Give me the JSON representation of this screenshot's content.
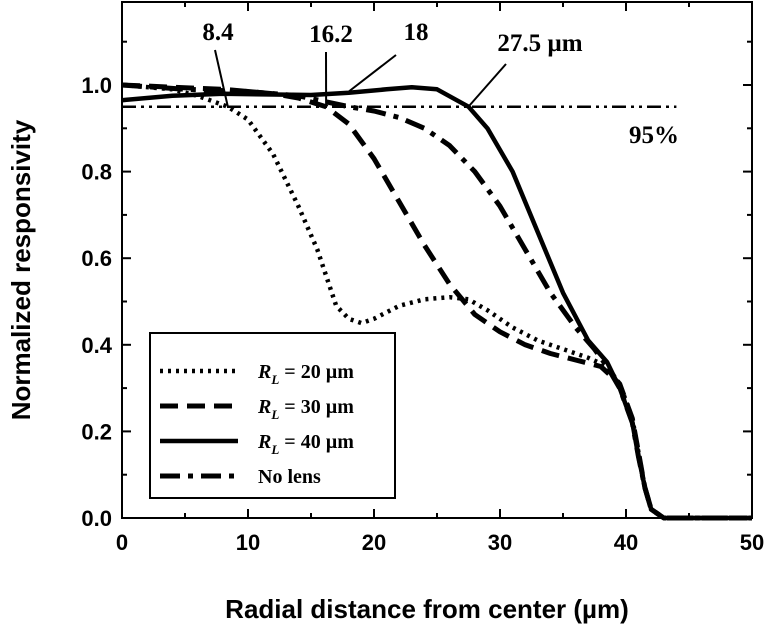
{
  "chart_data": {
    "type": "line",
    "xlabel": "Radial distance from center (µm)",
    "ylabel": "Normalized responsivity",
    "xlim": [
      0,
      50
    ],
    "ylim": [
      0,
      1.0
    ],
    "grid": false,
    "legend_position": "bottom-left",
    "x_ticks": [
      "0",
      "10",
      "20",
      "30",
      "40",
      "50"
    ],
    "y_ticks": [
      "0.0",
      "0.2",
      "0.4",
      "0.6",
      "0.8",
      "1.0"
    ],
    "series": [
      {
        "name_prefix": "R",
        "name_subscript": "L",
        "name_suffix": " = 20 µm",
        "style": "dotted",
        "points": [
          [
            0,
            1.0
          ],
          [
            4,
            0.99
          ],
          [
            6,
            0.975
          ],
          [
            8.4,
            0.95
          ],
          [
            10,
            0.92
          ],
          [
            12,
            0.84
          ],
          [
            14,
            0.72
          ],
          [
            15.5,
            0.62
          ],
          [
            17,
            0.49
          ],
          [
            18,
            0.46
          ],
          [
            19,
            0.45
          ],
          [
            20,
            0.46
          ],
          [
            22,
            0.49
          ],
          [
            24,
            0.505
          ],
          [
            26,
            0.51
          ],
          [
            27.5,
            0.505
          ],
          [
            29,
            0.48
          ],
          [
            31,
            0.44
          ],
          [
            33,
            0.41
          ],
          [
            35,
            0.39
          ],
          [
            37,
            0.37
          ],
          [
            38.5,
            0.35
          ],
          [
            39.5,
            0.31
          ],
          [
            40.5,
            0.23
          ],
          [
            41,
            0.15
          ],
          [
            41.5,
            0.07
          ],
          [
            42,
            0.02
          ],
          [
            43,
            0.0
          ],
          [
            50,
            0.0
          ]
        ]
      },
      {
        "name_prefix": "R",
        "name_subscript": "L",
        "name_suffix": " = 30 µm",
        "style": "dashed",
        "points": [
          [
            0,
            1.0
          ],
          [
            4,
            0.995
          ],
          [
            8,
            0.99
          ],
          [
            12,
            0.98
          ],
          [
            14,
            0.97
          ],
          [
            16.2,
            0.95
          ],
          [
            18,
            0.91
          ],
          [
            20,
            0.83
          ],
          [
            22,
            0.73
          ],
          [
            24,
            0.63
          ],
          [
            26,
            0.54
          ],
          [
            28,
            0.47
          ],
          [
            30,
            0.43
          ],
          [
            32,
            0.4
          ],
          [
            34,
            0.38
          ],
          [
            36,
            0.365
          ],
          [
            38,
            0.35
          ],
          [
            39.5,
            0.31
          ],
          [
            40.5,
            0.23
          ],
          [
            41,
            0.15
          ],
          [
            41.5,
            0.07
          ],
          [
            42,
            0.02
          ],
          [
            43,
            0.0
          ],
          [
            50,
            0.0
          ]
        ]
      },
      {
        "name_prefix": "R",
        "name_subscript": "L",
        "name_suffix": " = 40 µm",
        "style": "solid",
        "points": [
          [
            0,
            0.965
          ],
          [
            4,
            0.975
          ],
          [
            8,
            0.98
          ],
          [
            12,
            0.978
          ],
          [
            15,
            0.977
          ],
          [
            18,
            0.982
          ],
          [
            21,
            0.99
          ],
          [
            23,
            0.995
          ],
          [
            25,
            0.99
          ],
          [
            27.5,
            0.95
          ],
          [
            29,
            0.9
          ],
          [
            31,
            0.8
          ],
          [
            33,
            0.66
          ],
          [
            35,
            0.52
          ],
          [
            37,
            0.41
          ],
          [
            38.5,
            0.36
          ],
          [
            39.5,
            0.3
          ],
          [
            40.5,
            0.22
          ],
          [
            41,
            0.14
          ],
          [
            41.5,
            0.07
          ],
          [
            42,
            0.02
          ],
          [
            43,
            0.0
          ],
          [
            50,
            0.0
          ]
        ]
      },
      {
        "name": "No  lens",
        "style": "dash-dot",
        "points": [
          [
            0,
            1.0
          ],
          [
            5,
            0.99
          ],
          [
            10,
            0.985
          ],
          [
            14,
            0.975
          ],
          [
            18,
            0.95
          ],
          [
            20,
            0.94
          ],
          [
            22,
            0.925
          ],
          [
            24,
            0.9
          ],
          [
            26,
            0.86
          ],
          [
            28,
            0.8
          ],
          [
            30,
            0.72
          ],
          [
            32,
            0.62
          ],
          [
            34,
            0.52
          ],
          [
            36,
            0.44
          ],
          [
            37.5,
            0.39
          ],
          [
            38.5,
            0.35
          ],
          [
            39.5,
            0.3
          ],
          [
            40.5,
            0.22
          ],
          [
            41,
            0.14
          ],
          [
            41.5,
            0.07
          ],
          [
            42,
            0.02
          ],
          [
            43,
            0.0
          ],
          [
            50,
            0.0
          ]
        ]
      },
      {
        "name": "95% reference",
        "style": "dash-dot-dot",
        "points": [
          [
            0,
            0.95
          ],
          [
            44,
            0.95
          ]
        ]
      }
    ],
    "annotations": [
      {
        "text": "8.4",
        "x": 8.4,
        "y": 0.95
      },
      {
        "text": "16.2",
        "x": 16.2,
        "y": 0.95
      },
      {
        "text": "18",
        "x": 18,
        "y": 0.985
      },
      {
        "text": "27.5 µm",
        "x": 27.5,
        "y": 0.95
      },
      {
        "text": "95%",
        "x": 40,
        "y": 0.9
      }
    ]
  }
}
